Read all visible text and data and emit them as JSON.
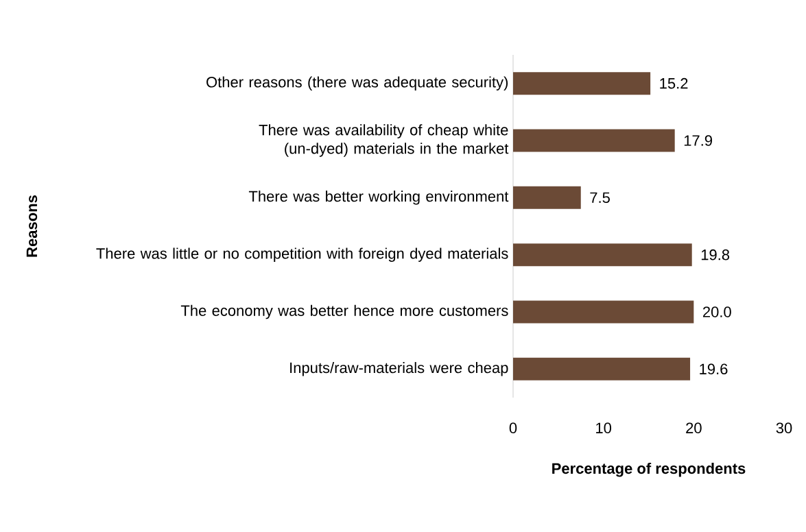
{
  "chart_data": {
    "type": "bar",
    "orientation": "horizontal",
    "xlabel": "Percentage of respondents",
    "ylabel": "Reasons",
    "categories": [
      "Other reasons (there was adequate security)",
      "There was availability of cheap white (un-dyed) materials in the market",
      "There was better working environment",
      "There was little or no competition with foreign dyed materials",
      "The economy was better hence more customers",
      "Inputs/raw-materials were cheap"
    ],
    "values": [
      15.2,
      17.9,
      7.5,
      19.8,
      20.0,
      19.6
    ],
    "value_labels": [
      "15.2",
      "17.9",
      "7.5",
      "19.8",
      "20.0",
      "19.6"
    ],
    "color": "#6b4a36",
    "xlim": [
      0,
      30
    ],
    "xticks": [
      0,
      10,
      20,
      30
    ]
  }
}
